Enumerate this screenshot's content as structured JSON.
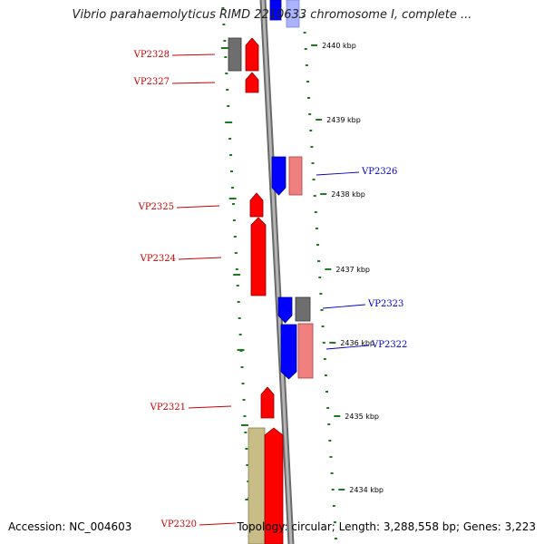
{
  "title": "Vibrio parahaemolyticus RIMD 2210633 chromosome I, complete ...",
  "accession_text": "Accession: NC_004603",
  "summary_text": "Topology: circular; Length: 3,288,558 bp; Genes: 3,223",
  "colors": {
    "backbone": "#8f8f8f",
    "tick": "#1e7a1e",
    "forward_gene": "#ff0000",
    "reverse_gene": "#0000ff",
    "forward_label": "#cc0000",
    "reverse_label": "#0000cc",
    "pseudo_gray": "#6e6e6e",
    "pink": "#f08080",
    "khaki": "#c8bd86",
    "light_blue": "#aab3ff"
  },
  "ticks": [
    "2440 kbp",
    "2439 kbp",
    "2438 kbp",
    "2437 kbp",
    "2436 kbp",
    "2435 kbp",
    "2434 kbp"
  ],
  "gene_labels": [
    {
      "id": "VP2328",
      "strand": "forward"
    },
    {
      "id": "VP2327",
      "strand": "forward"
    },
    {
      "id": "VP2326",
      "strand": "reverse"
    },
    {
      "id": "VP2325",
      "strand": "forward"
    },
    {
      "id": "VP2324",
      "strand": "forward"
    },
    {
      "id": "VP2323",
      "strand": "reverse"
    },
    {
      "id": "VP2322",
      "strand": "reverse"
    },
    {
      "id": "VP2321",
      "strand": "forward"
    },
    {
      "id": "VP2320",
      "strand": "forward"
    }
  ]
}
